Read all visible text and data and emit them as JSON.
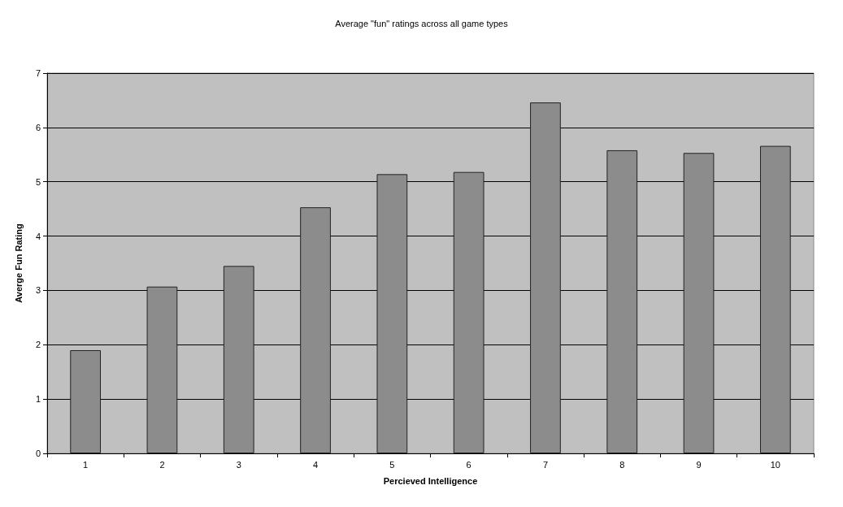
{
  "chart_data": {
    "type": "bar",
    "title": "Average \"fun\" ratings across all game types",
    "xlabel": "Percieved Intelligence",
    "ylabel": "Averge Fun Rating",
    "categories": [
      "1",
      "2",
      "3",
      "4",
      "5",
      "6",
      "7",
      "8",
      "9",
      "10"
    ],
    "values": [
      1.9,
      3.07,
      3.45,
      4.53,
      5.14,
      5.18,
      6.46,
      5.58,
      5.53,
      5.66
    ],
    "color": "#8c8c8c",
    "ylim": [
      0,
      7
    ],
    "yticks": [
      0,
      1,
      2,
      3,
      4,
      5,
      6,
      7
    ],
    "grid": "y"
  }
}
